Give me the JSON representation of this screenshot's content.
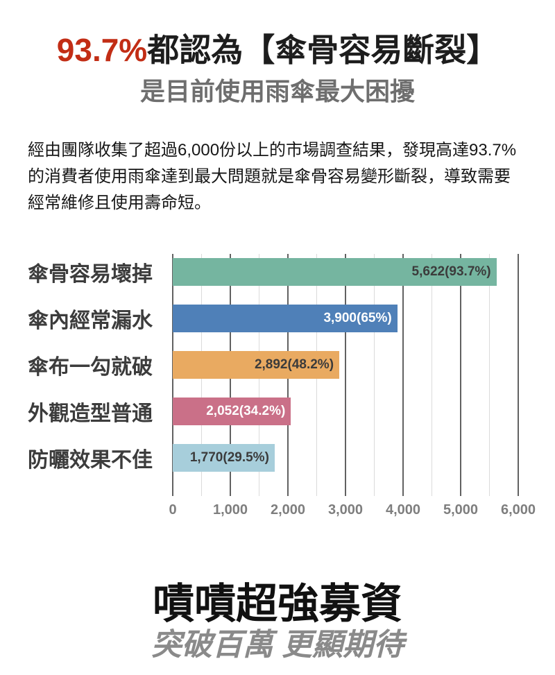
{
  "header": {
    "title_highlight": "93.7%",
    "title_rest": "都認為【傘骨容易斷裂】",
    "subtitle": "是目前使用雨傘最大困擾"
  },
  "intro": {
    "lines": [
      "經由團隊收集了超過6,000份以上的市場調查結果，發現高達93.7%",
      "的消費者使用雨傘達到最大問題就是傘骨容易變形斷裂，導致需要",
      "經常維修且使用壽命短。"
    ]
  },
  "chart_data": {
    "type": "bar",
    "orientation": "horizontal",
    "categories": [
      "傘骨容易壞掉",
      "傘內經常漏水",
      "傘布一勾就破",
      "外觀造型普通",
      "防曬效果不佳"
    ],
    "values": [
      5622,
      3900,
      2892,
      2052,
      1770
    ],
    "percentages": [
      93.7,
      65,
      48.2,
      34.2,
      29.5
    ],
    "bar_labels": [
      "5,622(93.7%)",
      "3,900(65%)",
      "2,892(48.2%)",
      "2,052(34.2%)",
      "1,770(29.5%)"
    ],
    "bar_colors": [
      "#75b5a0",
      "#4f80b8",
      "#e9aa61",
      "#ca7088",
      "#a7cedb"
    ],
    "bar_label_colors": [
      "#3b3b3b",
      "#ffffff",
      "#3b3b3b",
      "#ffffff",
      "#3b3b3b"
    ],
    "xlim": [
      0,
      6000
    ],
    "x_ticks": [
      0,
      1000,
      2000,
      3000,
      4000,
      5000,
      6000
    ],
    "x_tick_labels": [
      "0",
      "1,000",
      "2,000",
      "3,000",
      "4,000",
      "5,000",
      "6,000"
    ],
    "minor_step": 500,
    "grid": true,
    "legend": false,
    "title": "",
    "xlabel": "",
    "ylabel": ""
  },
  "footer": {
    "title": "嘖嘖超強募資",
    "subtitle": "突破百萬 更顯期待"
  }
}
